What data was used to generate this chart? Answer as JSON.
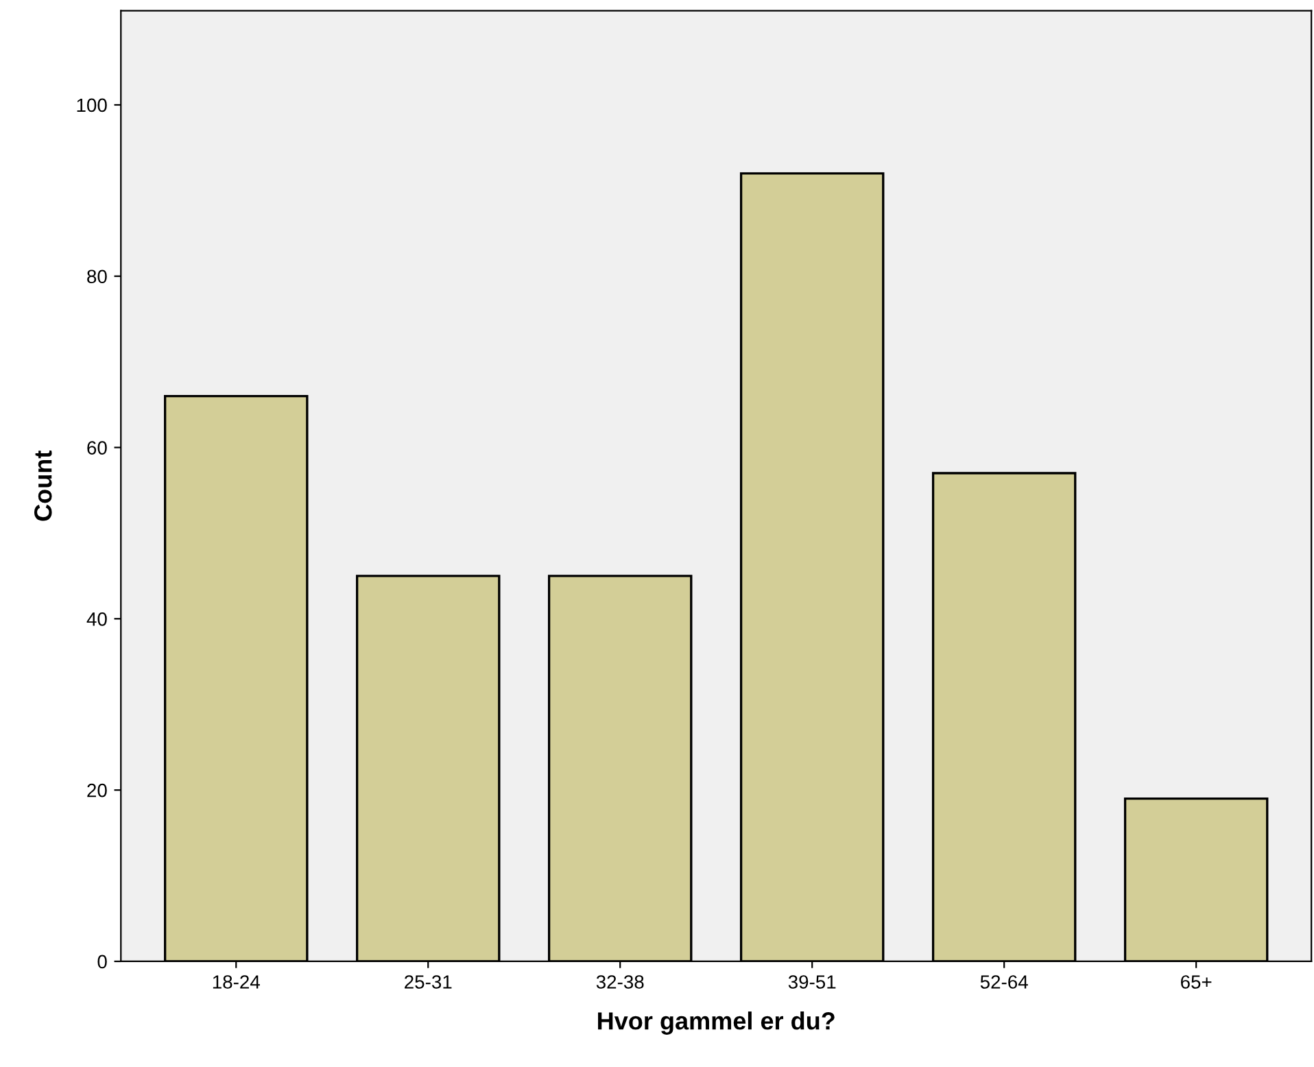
{
  "chart_data": {
    "type": "bar",
    "xlabel": "Hvor gammel er du?",
    "ylabel": "Count",
    "categories": [
      "18-24",
      "25-31",
      "32-38",
      "39-51",
      "52-64",
      "65+"
    ],
    "values": [
      66,
      45,
      45,
      92,
      57,
      19
    ],
    "color": "#d3ce97",
    "ylim": [
      0,
      111
    ],
    "yticks": [
      0,
      20,
      40,
      60,
      80,
      100
    ],
    "grid": false
  }
}
